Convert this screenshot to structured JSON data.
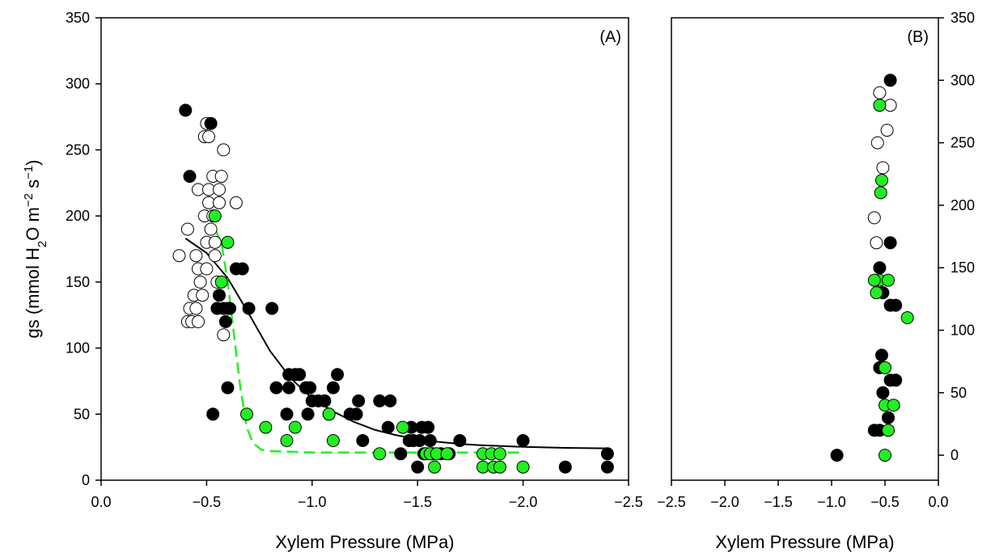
{
  "chart_data": [
    {
      "type": "scatter",
      "panel_label": "(A)",
      "xlabel": "Xylem Pressure (MPa)",
      "ylabel": "gs (mmol H2O m-2 s-1)",
      "ylabel_parts": {
        "pre": "gs (mmol H",
        "sub": "2",
        "mid1": "O m",
        "sup1": "−2",
        "mid2": " s",
        "sup2": "−1",
        "post": ")"
      },
      "xlim": [
        0.0,
        -2.5
      ],
      "ylim": [
        0,
        350
      ],
      "xticks": [
        0.0,
        -0.5,
        -1.0,
        -1.5,
        -2.0,
        -2.5
      ],
      "xtick_labels": [
        "0.0",
        "−0.5",
        "−1.0",
        "−1.5",
        "−2.0",
        "−2.5"
      ],
      "yticks": [
        0,
        50,
        100,
        150,
        200,
        250,
        300,
        350
      ],
      "ytick_labels": [
        "0",
        "50",
        "100",
        "150",
        "200",
        "250",
        "300",
        "350"
      ],
      "grid": false,
      "series": [
        {
          "fill": "#ffffff",
          "points": [
            [
              -0.37,
              170
            ],
            [
              -0.41,
              120
            ],
            [
              -0.41,
              190
            ],
            [
              -0.42,
              130
            ],
            [
              -0.43,
              120
            ],
            [
              -0.44,
              140
            ],
            [
              -0.45,
              130
            ],
            [
              -0.45,
              170
            ],
            [
              -0.46,
              120
            ],
            [
              -0.46,
              160
            ],
            [
              -0.47,
              150
            ],
            [
              -0.46,
              220
            ],
            [
              -0.48,
              140
            ],
            [
              -0.49,
              260
            ],
            [
              -0.49,
              200
            ],
            [
              -0.5,
              270
            ],
            [
              -0.5,
              180
            ],
            [
              -0.5,
              160
            ],
            [
              -0.51,
              260
            ],
            [
              -0.51,
              220
            ],
            [
              -0.51,
              210
            ],
            [
              -0.52,
              190
            ],
            [
              -0.53,
              230
            ],
            [
              -0.53,
              200
            ],
            [
              -0.54,
              170
            ],
            [
              -0.54,
              180
            ],
            [
              -0.55,
              150
            ],
            [
              -0.56,
              220
            ],
            [
              -0.56,
              210
            ],
            [
              -0.57,
              230
            ],
            [
              -0.58,
              250
            ],
            [
              -0.58,
              110
            ],
            [
              -0.6,
              130
            ],
            [
              -0.64,
              210
            ]
          ]
        },
        {
          "fill": "#000000",
          "points": [
            [
              -0.4,
              280
            ],
            [
              -0.42,
              230
            ],
            [
              -0.52,
              270
            ],
            [
              -0.53,
              50
            ],
            [
              -0.55,
              130
            ],
            [
              -0.56,
              140
            ],
            [
              -0.58,
              130
            ],
            [
              -0.59,
              120
            ],
            [
              -0.6,
              70
            ],
            [
              -0.61,
              130
            ],
            [
              -0.64,
              160
            ],
            [
              -0.67,
              160
            ],
            [
              -0.7,
              130
            ],
            [
              -0.81,
              130
            ],
            [
              -0.83,
              70
            ],
            [
              -0.88,
              50
            ],
            [
              -0.89,
              70
            ],
            [
              -0.89,
              80
            ],
            [
              -0.92,
              80
            ],
            [
              -0.94,
              80
            ],
            [
              -0.97,
              70
            ],
            [
              -0.98,
              50
            ],
            [
              -0.99,
              70
            ],
            [
              -1.0,
              60
            ],
            [
              -1.03,
              60
            ],
            [
              -1.06,
              60
            ],
            [
              -1.08,
              50
            ],
            [
              -1.1,
              70
            ],
            [
              -1.12,
              80
            ],
            [
              -1.18,
              50
            ],
            [
              -1.21,
              50
            ],
            [
              -1.22,
              60
            ],
            [
              -1.24,
              30
            ],
            [
              -1.32,
              60
            ],
            [
              -1.36,
              40
            ],
            [
              -1.37,
              60
            ],
            [
              -1.42,
              20
            ],
            [
              -1.46,
              30
            ],
            [
              -1.47,
              40
            ],
            [
              -1.48,
              30
            ],
            [
              -1.5,
              10
            ],
            [
              -1.51,
              30
            ],
            [
              -1.52,
              40
            ],
            [
              -1.53,
              20
            ],
            [
              -1.55,
              40
            ],
            [
              -1.56,
              30
            ],
            [
              -1.57,
              20
            ],
            [
              -1.61,
              20
            ],
            [
              -1.65,
              20
            ],
            [
              -1.7,
              30
            ],
            [
              -2.0,
              30
            ],
            [
              -2.2,
              10
            ],
            [
              -2.4,
              20
            ],
            [
              -2.4,
              10
            ]
          ]
        },
        {
          "fill": "#22ee22",
          "points": [
            [
              -0.54,
              200
            ],
            [
              -0.57,
              150
            ],
            [
              -0.6,
              180
            ],
            [
              -0.69,
              50
            ],
            [
              -0.78,
              40
            ],
            [
              -0.88,
              30
            ],
            [
              -0.92,
              40
            ],
            [
              -1.08,
              50
            ],
            [
              -1.1,
              30
            ],
            [
              -1.32,
              20
            ],
            [
              -1.43,
              40
            ],
            [
              -1.54,
              20
            ],
            [
              -1.56,
              20
            ],
            [
              -1.58,
              10
            ],
            [
              -1.59,
              20
            ],
            [
              -1.64,
              20
            ],
            [
              -1.81,
              20
            ],
            [
              -1.81,
              10
            ],
            [
              -1.85,
              20
            ],
            [
              -1.86,
              10
            ],
            [
              -1.89,
              20
            ],
            [
              -1.89,
              10
            ],
            [
              -2.0,
              10
            ]
          ]
        }
      ],
      "fit_curves": [
        {
          "style": "solid",
          "color": "#000000",
          "points": [
            [
              -0.4,
              183
            ],
            [
              -0.5,
              172
            ],
            [
              -0.6,
              153
            ],
            [
              -0.7,
              126
            ],
            [
              -0.8,
              98
            ],
            [
              -0.9,
              77
            ],
            [
              -1.0,
              62
            ],
            [
              -1.1,
              52
            ],
            [
              -1.2,
              44
            ],
            [
              -1.3,
              38
            ],
            [
              -1.4,
              34
            ],
            [
              -1.5,
              31
            ],
            [
              -1.6,
              29
            ],
            [
              -1.7,
              27.5
            ],
            [
              -1.8,
              26.5
            ],
            [
              -1.9,
              25.8
            ],
            [
              -2.0,
              25.2
            ],
            [
              -2.2,
              24.5
            ],
            [
              -2.4,
              24.1
            ]
          ]
        },
        {
          "style": "dashed",
          "color": "#22ee22",
          "points": [
            [
              -0.54,
              190
            ],
            [
              -0.57,
              180
            ],
            [
              -0.6,
              150
            ],
            [
              -0.63,
              110
            ],
            [
              -0.66,
              70
            ],
            [
              -0.69,
              40
            ],
            [
              -0.72,
              28
            ],
            [
              -0.76,
              23
            ],
            [
              -0.8,
              22
            ],
            [
              -1.0,
              21
            ],
            [
              -1.5,
              21
            ],
            [
              -2.0,
              21
            ]
          ]
        }
      ]
    },
    {
      "type": "scatter",
      "panel_label": "(B)",
      "xlabel": "Xylem Pressure (MPa)",
      "xlim": [
        -2.5,
        0.0
      ],
      "ylim": [
        -20,
        350
      ],
      "xticks": [
        -2.5,
        -2.0,
        -1.5,
        -1.0,
        -0.5,
        0.0
      ],
      "xtick_labels": [
        "−2.5",
        "−2.0",
        "−1.5",
        "−1.0",
        "−0.5",
        "0.0"
      ],
      "yticks": [
        0,
        50,
        100,
        150,
        200,
        250,
        300,
        350
      ],
      "ytick_labels": [
        "0",
        "50",
        "100",
        "150",
        "200",
        "250",
        "300",
        "350"
      ],
      "y_axis_side": "right",
      "grid": false,
      "series": [
        {
          "fill": "#ffffff",
          "points": [
            [
              -0.55,
              290
            ],
            [
              -0.45,
              280
            ],
            [
              -0.48,
              260
            ],
            [
              -0.57,
              250
            ],
            [
              -0.52,
              230
            ],
            [
              -0.6,
              190
            ],
            [
              -0.58,
              170
            ]
          ]
        },
        {
          "fill": "#000000",
          "points": [
            [
              -0.45,
              300
            ],
            [
              -0.45,
              170
            ],
            [
              -0.55,
              150
            ],
            [
              -0.52,
              130
            ],
            [
              -0.45,
              120
            ],
            [
              -0.4,
              120
            ],
            [
              -0.53,
              80
            ],
            [
              -0.55,
              70
            ],
            [
              -0.45,
              60
            ],
            [
              -0.4,
              60
            ],
            [
              -0.52,
              50
            ],
            [
              -0.47,
              30
            ],
            [
              -0.6,
              20
            ],
            [
              -0.55,
              20
            ],
            [
              -0.95,
              0
            ]
          ]
        },
        {
          "fill": "#22ee22",
          "points": [
            [
              -0.55,
              280
            ],
            [
              -0.53,
              220
            ],
            [
              -0.54,
              210
            ],
            [
              -0.55,
              140
            ],
            [
              -0.6,
              140
            ],
            [
              -0.47,
              140
            ],
            [
              -0.58,
              130
            ],
            [
              -0.29,
              110
            ],
            [
              -0.5,
              70
            ],
            [
              -0.5,
              40
            ],
            [
              -0.42,
              40
            ],
            [
              -0.47,
              20
            ],
            [
              -0.5,
              0
            ]
          ]
        }
      ]
    }
  ]
}
